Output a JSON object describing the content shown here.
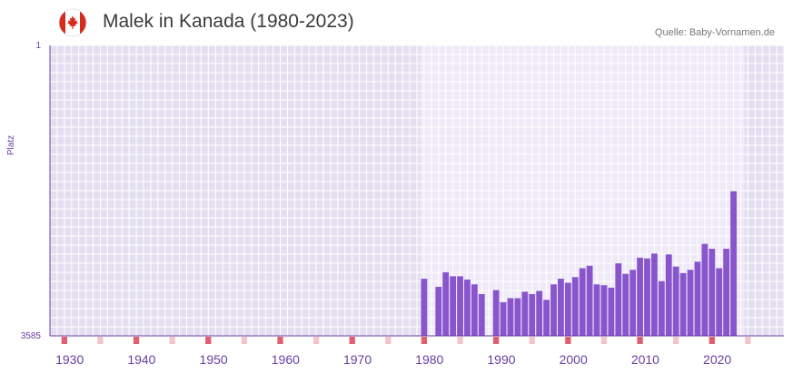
{
  "header": {
    "title": "Malek in Kanada (1980-2023)",
    "source": "Quelle: Baby-Vornamen.de",
    "flag_icon": "canada-flag-icon"
  },
  "colors": {
    "bar": "#8855cc",
    "axis": "#6a3fa0",
    "grid_background": "#e4dff0",
    "highlight_background": "#efeaf8",
    "grid_line": "#ffffff",
    "decade_marker": "#e06070",
    "minor_marker": "#f4c4cc",
    "flag_red": "#d52b1e"
  },
  "chart_data": {
    "type": "bar",
    "title": "Malek in Kanada (1980-2023)",
    "xlabel": "",
    "ylabel": "Platz",
    "y_inverted": true,
    "ylim": [
      1,
      3585
    ],
    "xlim": [
      1926,
      2028
    ],
    "highlight_range": [
      1977.5,
      2022.5
    ],
    "y_ticks": [
      "1",
      "3585"
    ],
    "x_ticks": [
      1930,
      1940,
      1950,
      1960,
      1970,
      1980,
      1990,
      2000,
      2010,
      2020
    ],
    "x_tick_labels": [
      "1930",
      "1940",
      "1950",
      "1960",
      "1970",
      "1980",
      "1990",
      "2000",
      "2010",
      "2020"
    ],
    "series": [
      {
        "name": "Malek",
        "x": [
          1978,
          1980,
          1981,
          1982,
          1983,
          1984,
          1985,
          1986,
          1988,
          1989,
          1990,
          1991,
          1992,
          1993,
          1994,
          1995,
          1996,
          1997,
          1998,
          1999,
          2000,
          2001,
          2002,
          2003,
          2004,
          2005,
          2006,
          2007,
          2008,
          2009,
          2010,
          2011,
          2012,
          2013,
          2014,
          2015,
          2016,
          2017,
          2018,
          2019,
          2020,
          2021
        ],
        "values": [
          2880,
          2980,
          2800,
          2850,
          2850,
          2890,
          2950,
          3070,
          3020,
          3170,
          3120,
          3120,
          3040,
          3070,
          3030,
          3140,
          2950,
          2880,
          2930,
          2860,
          2750,
          2720,
          2950,
          2960,
          2990,
          2690,
          2820,
          2770,
          2620,
          2630,
          2570,
          2910,
          2580,
          2730,
          2810,
          2770,
          2670,
          2450,
          2510,
          2750,
          2510,
          1800
        ]
      }
    ]
  }
}
